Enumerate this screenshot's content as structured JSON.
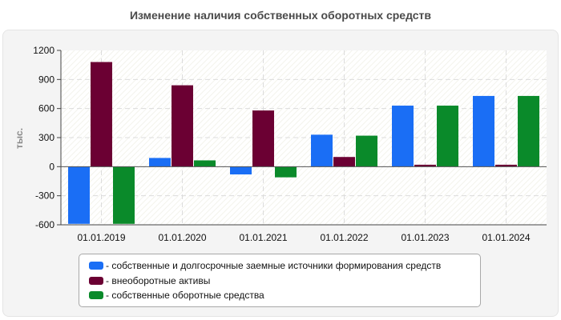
{
  "title": "Изменение наличия собственных оборотных средств",
  "chart_data": {
    "type": "bar",
    "ylabel": "тыс.",
    "xlabel": "",
    "ylim": [
      -600,
      1200
    ],
    "yticks": [
      -600,
      -300,
      0,
      300,
      600,
      900,
      1200
    ],
    "grid": true,
    "legend_position": "bottom",
    "categories": [
      "01.01.2019",
      "01.01.2020",
      "01.01.2021",
      "01.01.2022",
      "01.01.2023",
      "01.01.2024"
    ],
    "series": [
      {
        "name": "- собственные и долгосрочные заемные источники формирования средств",
        "color": "#1a6ef5",
        "values": [
          -590,
          90,
          -80,
          330,
          630,
          730
        ]
      },
      {
        "name": "- внеоборотные активы",
        "color": "#6b0033",
        "values": [
          1080,
          840,
          580,
          100,
          20,
          20
        ]
      },
      {
        "name": "- собственные оборотные средства",
        "color": "#0a8a2a",
        "values": [
          -590,
          65,
          -110,
          320,
          630,
          730
        ]
      }
    ]
  }
}
